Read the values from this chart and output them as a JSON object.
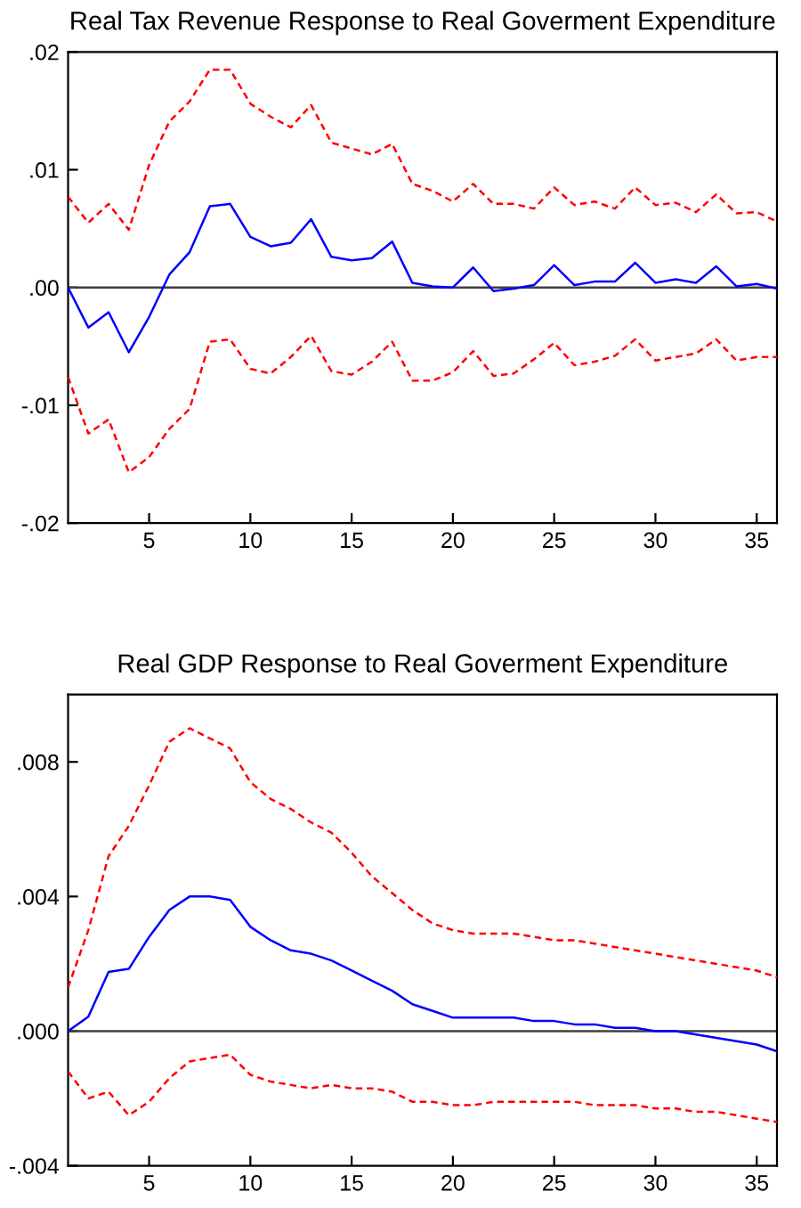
{
  "chart_data": [
    {
      "type": "line",
      "title": "Real Tax Revenue Response to Real Goverment Expenditure",
      "x": [
        1,
        2,
        3,
        4,
        5,
        6,
        7,
        8,
        9,
        10,
        11,
        12,
        13,
        14,
        15,
        16,
        17,
        18,
        19,
        20,
        21,
        22,
        23,
        24,
        25,
        26,
        27,
        28,
        29,
        30,
        31,
        32,
        33,
        34,
        35,
        36
      ],
      "series": [
        {
          "color": "#0000ff",
          "line_style": "solid",
          "values": [
            0,
            -0.0034,
            -0.0021,
            -0.0055,
            -0.0025,
            0.0011,
            0.003,
            0.0069,
            0.0071,
            0.0043,
            0.0035,
            0.0038,
            0.0058,
            0.0026,
            0.0023,
            0.0025,
            0.0039,
            0.0004,
            0.0001,
            0.0,
            0.0017,
            -0.0003,
            -0.0001,
            0.0002,
            0.0019,
            0.0002,
            0.0005,
            0.0005,
            0.0021,
            0.0004,
            0.0007,
            0.0004,
            0.0018,
            0.0001,
            0.0003,
            -0.0001
          ]
        },
        {
          "color": "#ff0000",
          "line_style": "dashed",
          "values": [
            0.0077,
            0.0055,
            0.0071,
            0.0049,
            0.0104,
            0.0141,
            0.0158,
            0.0185,
            0.0185,
            0.0156,
            0.0145,
            0.0136,
            0.0155,
            0.0123,
            0.0118,
            0.0113,
            0.0122,
            0.0088,
            0.0082,
            0.0073,
            0.0088,
            0.0071,
            0.0071,
            0.0067,
            0.0085,
            0.007,
            0.0073,
            0.0067,
            0.0085,
            0.007,
            0.0072,
            0.0064,
            0.0079,
            0.0063,
            0.0064,
            0.0056
          ]
        },
        {
          "color": "#ff0000",
          "line_style": "dashed",
          "values": [
            -0.0076,
            -0.0124,
            -0.0112,
            -0.0157,
            -0.0144,
            -0.012,
            -0.0103,
            -0.0046,
            -0.0044,
            -0.0069,
            -0.0073,
            -0.0059,
            -0.0041,
            -0.0071,
            -0.0074,
            -0.0063,
            -0.0046,
            -0.0079,
            -0.0079,
            -0.0072,
            -0.0054,
            -0.0075,
            -0.0073,
            -0.0061,
            -0.0047,
            -0.0066,
            -0.0063,
            -0.0058,
            -0.0044,
            -0.0062,
            -0.0059,
            -0.0056,
            -0.0044,
            -0.0062,
            -0.0059,
            -0.0059
          ]
        }
      ],
      "xlim": [
        1,
        36
      ],
      "xticks": [
        5,
        10,
        15,
        20,
        25,
        30,
        35
      ],
      "ylim": [
        -0.02,
        0.02
      ],
      "yticks": [
        {
          "value": -0.02,
          "label": "-.02"
        },
        {
          "value": -0.01,
          "label": "-.01"
        },
        {
          "value": 0,
          "label": ".00"
        },
        {
          "value": 0.01,
          "label": ".01"
        },
        {
          "value": 0.02,
          "label": ".02"
        }
      ],
      "ref_lines": [
        {
          "axis": "y",
          "value": 0,
          "color": "#404040"
        }
      ],
      "grid": false,
      "legend": false,
      "marker": "none"
    },
    {
      "type": "line",
      "title": "Real GDP Response to Real Goverment Expenditure",
      "x": [
        1,
        2,
        3,
        4,
        5,
        6,
        7,
        8,
        9,
        10,
        11,
        12,
        13,
        14,
        15,
        16,
        17,
        18,
        19,
        20,
        21,
        22,
        23,
        24,
        25,
        26,
        27,
        28,
        29,
        30,
        31,
        32,
        33,
        34,
        35,
        36
      ],
      "series": [
        {
          "color": "#0000ff",
          "line_style": "solid",
          "values": [
            0,
            0.00043,
            0.00176,
            0.00185,
            0.0028,
            0.0036,
            0.004,
            0.004,
            0.0039,
            0.0031,
            0.0027,
            0.0024,
            0.0023,
            0.0021,
            0.0018,
            0.0015,
            0.0012,
            0.0008,
            0.0006,
            0.0004,
            0.0004,
            0.0004,
            0.0004,
            0.0003,
            0.0003,
            0.0002,
            0.0002,
            0.0001,
            0.0001,
            0.0,
            0.0,
            -0.0001,
            -0.0002,
            -0.0003,
            -0.0004,
            -0.0006
          ]
        },
        {
          "color": "#ff0000",
          "line_style": "dashed",
          "values": [
            0.0013,
            0.003,
            0.0052,
            0.0061,
            0.0073,
            0.0086,
            0.009,
            0.0087,
            0.0084,
            0.0074,
            0.0069,
            0.0066,
            0.0062,
            0.0059,
            0.0053,
            0.0046,
            0.0041,
            0.0036,
            0.0032,
            0.003,
            0.0029,
            0.0029,
            0.0029,
            0.0028,
            0.0027,
            0.0027,
            0.0026,
            0.0025,
            0.0024,
            0.0023,
            0.0022,
            0.0021,
            0.002,
            0.0019,
            0.0018,
            0.0016
          ]
        },
        {
          "color": "#ff0000",
          "line_style": "dashed",
          "values": [
            -0.0012,
            -0.002,
            -0.0018,
            -0.0025,
            -0.0021,
            -0.0014,
            -0.0009,
            -0.0008,
            -0.0007,
            -0.0013,
            -0.0015,
            -0.0016,
            -0.0017,
            -0.0016,
            -0.0017,
            -0.0017,
            -0.0018,
            -0.0021,
            -0.0021,
            -0.0022,
            -0.0022,
            -0.0021,
            -0.0021,
            -0.0021,
            -0.0021,
            -0.0021,
            -0.0022,
            -0.0022,
            -0.0022,
            -0.0023,
            -0.0023,
            -0.0024,
            -0.0024,
            -0.0025,
            -0.0026,
            -0.0027
          ]
        }
      ],
      "xlim": [
        1,
        36
      ],
      "xticks": [
        5,
        10,
        15,
        20,
        25,
        30,
        35
      ],
      "ylim": [
        -0.004,
        0.01
      ],
      "yticks": [
        {
          "value": -0.004,
          "label": "-.004"
        },
        {
          "value": 0,
          "label": ".000"
        },
        {
          "value": 0.004,
          "label": ".004"
        },
        {
          "value": 0.008,
          "label": ".008"
        }
      ],
      "ref_lines": [
        {
          "axis": "y",
          "value": 0,
          "color": "#404040"
        }
      ],
      "grid": false,
      "legend": false,
      "marker": "none"
    }
  ]
}
